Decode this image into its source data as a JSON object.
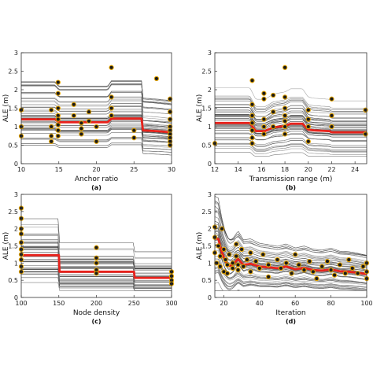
{
  "chart_data": [
    {
      "type": "line",
      "panel_label": "(a)",
      "xlabel": "Anchor ratio",
      "ylabel": "ALE (m)",
      "xlim": [
        10,
        30
      ],
      "ylim": [
        0,
        3
      ],
      "xticks": [
        10,
        15,
        20,
        25,
        30
      ],
      "yticks": [
        0,
        0.5,
        1,
        1.5,
        2,
        2.5,
        3
      ],
      "grid": false,
      "mean_curve": [
        [
          10,
          1.2
        ],
        [
          14.5,
          1.2
        ],
        [
          15,
          1.12
        ],
        [
          21.5,
          1.12
        ],
        [
          22,
          1.22
        ],
        [
          26,
          1.22
        ],
        [
          26.2,
          0.9
        ],
        [
          28,
          0.88
        ],
        [
          30,
          0.85
        ]
      ],
      "mean_color": "#e8221c",
      "marker_color": "#1a1a1a",
      "marker_edge": "#e3a300",
      "markers": [
        [
          10,
          1.45
        ],
        [
          10,
          1.0
        ],
        [
          10,
          0.75
        ],
        [
          14,
          1.45
        ],
        [
          14,
          1.0
        ],
        [
          14,
          0.75
        ],
        [
          14,
          0.6
        ],
        [
          14.9,
          2.2
        ],
        [
          14.9,
          1.9
        ],
        [
          14.9,
          1.5
        ],
        [
          14.9,
          1.3
        ],
        [
          14.9,
          1.2
        ],
        [
          14.9,
          1.05
        ],
        [
          14.9,
          0.9
        ],
        [
          14.9,
          0.75
        ],
        [
          17,
          1.6
        ],
        [
          17,
          1.3
        ],
        [
          18,
          1.1
        ],
        [
          18,
          0.95
        ],
        [
          18,
          0.8
        ],
        [
          19,
          1.4
        ],
        [
          19,
          1.15
        ],
        [
          20,
          1.0
        ],
        [
          20,
          0.6
        ],
        [
          22,
          2.6
        ],
        [
          22,
          1.8
        ],
        [
          22,
          1.5
        ],
        [
          22,
          1.3
        ],
        [
          25,
          0.9
        ],
        [
          25,
          0.7
        ],
        [
          28,
          2.3
        ],
        [
          29.8,
          1.75
        ],
        [
          29.8,
          1.4
        ],
        [
          29.8,
          1.2
        ],
        [
          29.8,
          1.0
        ],
        [
          29.8,
          0.9
        ],
        [
          29.8,
          0.8
        ],
        [
          29.8,
          0.7
        ],
        [
          29.8,
          0.6
        ],
        [
          29.8,
          0.5
        ]
      ]
    },
    {
      "type": "line",
      "panel_label": "(b)",
      "xlabel": "Transmission range (m)",
      "ylabel": "ALE (m)",
      "xlim": [
        12,
        25
      ],
      "ylim": [
        0,
        3
      ],
      "xticks": [
        12,
        14,
        16,
        18,
        20,
        22,
        24
      ],
      "yticks": [
        0,
        0.5,
        1,
        1.5,
        2,
        2.5,
        3
      ],
      "grid": false,
      "mean_curve": [
        [
          12,
          1.1
        ],
        [
          15,
          1.1
        ],
        [
          15.5,
          0.88
        ],
        [
          16.3,
          0.88
        ],
        [
          17,
          0.98
        ],
        [
          18,
          1.02
        ],
        [
          18.5,
          1.08
        ],
        [
          19.5,
          1.08
        ],
        [
          20,
          0.92
        ],
        [
          20.5,
          0.9
        ],
        [
          21.8,
          0.88
        ],
        [
          22,
          0.85
        ],
        [
          25,
          0.85
        ]
      ],
      "mean_color": "#e8221c",
      "marker_color": "#1a1a1a",
      "marker_edge": "#e3a300",
      "markers": [
        [
          12,
          0.55
        ],
        [
          15.2,
          2.25
        ],
        [
          15.2,
          1.6
        ],
        [
          15.2,
          1.3
        ],
        [
          15.2,
          1.1
        ],
        [
          15.2,
          0.9
        ],
        [
          15.2,
          0.7
        ],
        [
          15.2,
          0.55
        ],
        [
          16.2,
          1.9
        ],
        [
          16.2,
          1.75
        ],
        [
          16.2,
          1.2
        ],
        [
          16.2,
          1.0
        ],
        [
          16.2,
          0.8
        ],
        [
          17,
          1.85
        ],
        [
          17,
          1.4
        ],
        [
          17,
          1.0
        ],
        [
          18,
          2.6
        ],
        [
          18,
          1.8
        ],
        [
          18,
          1.5
        ],
        [
          18,
          1.3
        ],
        [
          18,
          1.15
        ],
        [
          18,
          1.0
        ],
        [
          18,
          0.8
        ],
        [
          20,
          1.45
        ],
        [
          20,
          1.2
        ],
        [
          20,
          1.0
        ],
        [
          20,
          0.6
        ],
        [
          22,
          1.75
        ],
        [
          22,
          1.3
        ],
        [
          22,
          1.0
        ],
        [
          24.9,
          1.45
        ],
        [
          24.9,
          0.8
        ]
      ]
    },
    {
      "type": "line",
      "panel_label": "(c)",
      "xlabel": "Node density",
      "ylabel": "ALE (m)",
      "xlim": [
        100,
        300
      ],
      "ylim": [
        0,
        3
      ],
      "xticks": [
        100,
        150,
        200,
        250,
        300
      ],
      "yticks": [
        0,
        0.5,
        1,
        1.5,
        2,
        2.5,
        3
      ],
      "grid": false,
      "mean_curve": [
        [
          100,
          1.23
        ],
        [
          150,
          1.23
        ],
        [
          151,
          0.75
        ],
        [
          250,
          0.75
        ],
        [
          251,
          0.57
        ],
        [
          300,
          0.57
        ]
      ],
      "mean_color": "#e8221c",
      "marker_color": "#1a1a1a",
      "marker_edge": "#e3a300",
      "markers": [
        [
          100,
          2.6
        ],
        [
          100,
          2.3
        ],
        [
          100,
          2.0
        ],
        [
          100,
          1.85
        ],
        [
          100,
          1.6
        ],
        [
          100,
          1.4
        ],
        [
          100,
          1.25
        ],
        [
          100,
          1.1
        ],
        [
          100,
          0.9
        ],
        [
          100,
          0.75
        ],
        [
          200,
          1.45
        ],
        [
          200,
          1.15
        ],
        [
          200,
          1.0
        ],
        [
          200,
          0.8
        ],
        [
          200,
          0.7
        ],
        [
          300,
          0.75
        ],
        [
          300,
          0.62
        ],
        [
          300,
          0.5
        ],
        [
          300,
          0.4
        ]
      ]
    },
    {
      "type": "line",
      "panel_label": "(d)",
      "xlabel": "Iteration",
      "ylabel": "ALE (m)",
      "xlim": [
        15,
        100
      ],
      "ylim": [
        0,
        3
      ],
      "xticks": [
        20,
        40,
        60,
        80,
        100
      ],
      "yticks": [
        0,
        0.5,
        1,
        1.5,
        2,
        2.5,
        3
      ],
      "grid": false,
      "mean_curve": [
        [
          15,
          1.72
        ],
        [
          17,
          1.7
        ],
        [
          19,
          1.3
        ],
        [
          21,
          1.05
        ],
        [
          23,
          0.92
        ],
        [
          25,
          0.95
        ],
        [
          28,
          1.12
        ],
        [
          31,
          0.95
        ],
        [
          35,
          0.98
        ],
        [
          40,
          0.9
        ],
        [
          45,
          0.88
        ],
        [
          50,
          0.85
        ],
        [
          55,
          0.9
        ],
        [
          60,
          0.82
        ],
        [
          65,
          0.86
        ],
        [
          70,
          0.8
        ],
        [
          75,
          0.78
        ],
        [
          80,
          0.82
        ],
        [
          85,
          0.76
        ],
        [
          90,
          0.75
        ],
        [
          95,
          0.72
        ],
        [
          100,
          0.68
        ]
      ],
      "mean_color": "#e8221c",
      "marker_color": "#1a1a1a",
      "marker_edge": "#e3a300",
      "markers": [
        [
          15,
          2.05
        ],
        [
          15,
          1.75
        ],
        [
          15,
          1.3
        ],
        [
          16,
          1.0
        ],
        [
          17,
          1.5
        ],
        [
          18,
          1.2
        ],
        [
          18,
          0.9
        ],
        [
          19,
          2.0
        ],
        [
          20,
          1.4
        ],
        [
          20,
          0.75
        ],
        [
          21,
          1.1
        ],
        [
          22,
          0.95
        ],
        [
          22,
          0.7
        ],
        [
          23,
          1.25
        ],
        [
          25,
          1.0
        ],
        [
          25,
          0.85
        ],
        [
          27,
          1.55
        ],
        [
          27,
          1.2
        ],
        [
          28,
          0.95
        ],
        [
          28,
          0.8
        ],
        [
          30,
          1.4
        ],
        [
          31,
          0.9
        ],
        [
          33,
          1.1
        ],
        [
          35,
          1.3
        ],
        [
          35,
          0.75
        ],
        [
          38,
          1.05
        ],
        [
          40,
          0.85
        ],
        [
          42,
          1.25
        ],
        [
          45,
          0.95
        ],
        [
          45,
          0.6
        ],
        [
          50,
          1.1
        ],
        [
          52,
          0.85
        ],
        [
          55,
          1.0
        ],
        [
          58,
          0.7
        ],
        [
          60,
          1.25
        ],
        [
          62,
          0.95
        ],
        [
          65,
          0.8
        ],
        [
          68,
          1.05
        ],
        [
          70,
          0.75
        ],
        [
          72,
          0.55
        ],
        [
          75,
          0.9
        ],
        [
          78,
          1.05
        ],
        [
          80,
          0.8
        ],
        [
          82,
          0.65
        ],
        [
          85,
          0.95
        ],
        [
          88,
          0.7
        ],
        [
          90,
          1.1
        ],
        [
          92,
          0.85
        ],
        [
          95,
          0.7
        ],
        [
          98,
          0.9
        ],
        [
          100,
          1.0
        ],
        [
          100,
          0.75
        ],
        [
          100,
          0.55
        ]
      ]
    }
  ]
}
